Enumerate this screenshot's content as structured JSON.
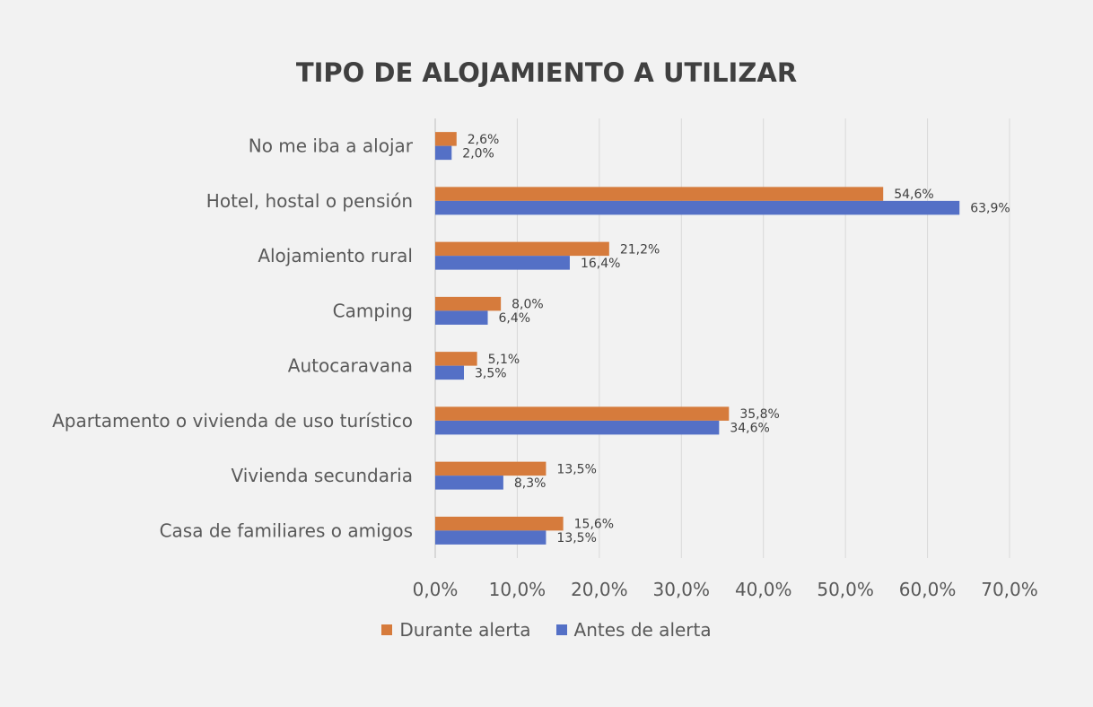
{
  "chart_data": {
    "type": "bar",
    "orientation": "horizontal",
    "title": "TIPO DE ALOJAMIENTO A UTILIZAR",
    "categories": [
      "No me iba a alojar",
      "Hotel, hostal o pensión",
      "Alojamiento rural",
      "Camping",
      "Autocaravana",
      "Apartamento o vivienda de uso turístico",
      "Vivienda secundaria",
      "Casa de familiares o amigos"
    ],
    "series": [
      {
        "name": "Durante alerta",
        "color": "#d67b3c",
        "values": [
          2.6,
          54.6,
          21.2,
          8.0,
          5.1,
          35.8,
          13.5,
          15.6
        ],
        "labels": [
          "2,6%",
          "54,6%",
          "21,2%",
          "8,0%",
          "5,1%",
          "35,8%",
          "13,5%",
          "15,6%"
        ]
      },
      {
        "name": "Antes de alerta",
        "color": "#5470c6",
        "values": [
          2.0,
          63.9,
          16.4,
          6.4,
          3.5,
          34.6,
          8.3,
          13.5
        ],
        "labels": [
          "2,0%",
          "63,9%",
          "16,4%",
          "6,4%",
          "3,5%",
          "34,6%",
          "8,3%",
          "13,5%"
        ]
      }
    ],
    "xlim": [
      0,
      70
    ],
    "x_ticks": [
      "0,0%",
      "10,0%",
      "20,0%",
      "30,0%",
      "40,0%",
      "50,0%",
      "60,0%",
      "70,0%"
    ],
    "grid": true,
    "legend_position": "bottom"
  }
}
